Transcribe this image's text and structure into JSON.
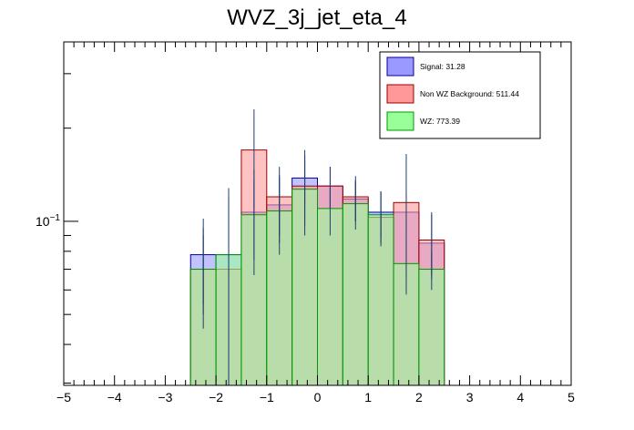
{
  "chart_data": {
    "type": "histogram",
    "title": "WVZ_3j_jet_eta_4",
    "xlabel": "",
    "ylabel": "",
    "xlim": [
      -5,
      5
    ],
    "ylim": [
      0.0295,
      0.38
    ],
    "y_scale": "log",
    "x_ticks": [
      -5,
      -4,
      -3,
      -2,
      -1,
      0,
      1,
      2,
      3,
      4,
      5
    ],
    "x_tick_labels": [
      "−5",
      "−4",
      "−3",
      "−2",
      "−1",
      "0",
      "1",
      "2",
      "3",
      "4",
      "5"
    ],
    "y_tick_labels": [
      {
        "value": 0.1,
        "base": "10",
        "exp": "−1"
      }
    ],
    "bin_edges": [
      -2.5,
      -2.0,
      -1.5,
      -1.0,
      -0.5,
      0.0,
      0.5,
      1.0,
      1.5,
      2.0,
      2.5
    ],
    "series": [
      {
        "name": "Signal: 31.28",
        "color": "#9999ff",
        "edge": "#000099",
        "values": [
          0.078,
          0.078,
          0.107,
          0.113,
          0.138,
          0.13,
          0.118,
          0.107,
          0.107,
          0.085
        ],
        "errors": [
          0.024,
          0.05,
          0.04,
          0.028,
          0.025,
          0.02,
          0.018,
          0.018,
          0.018,
          0.02
        ]
      },
      {
        "name": "Non WZ Background: 511.44",
        "color": "#ff9999",
        "edge": "#990000",
        "values": [
          0.07,
          0.07,
          0.17,
          0.12,
          0.13,
          0.13,
          0.12,
          0.103,
          0.115,
          0.087
        ],
        "errors": [
          0.02,
          0.05,
          0.06,
          0.03,
          0.04,
          0.02,
          0.02,
          0.02,
          0.05,
          0.02
        ]
      },
      {
        "name": "WZ: 773.39",
        "color": "#99ff99",
        "edge": "#009900",
        "values": [
          0.07,
          0.078,
          0.105,
          0.108,
          0.127,
          0.11,
          0.114,
          0.105,
          0.073,
          0.07
        ],
        "errors": [
          0.025,
          0.04,
          0.03,
          0.03,
          0.03,
          0.02,
          0.02,
          0.02,
          0.015,
          0.01
        ]
      }
    ],
    "legend": {
      "placement": "top-right",
      "entries": [
        "Signal: 31.28",
        "Non WZ Background: 511.44",
        "WZ: 773.39"
      ]
    },
    "grid": false
  }
}
